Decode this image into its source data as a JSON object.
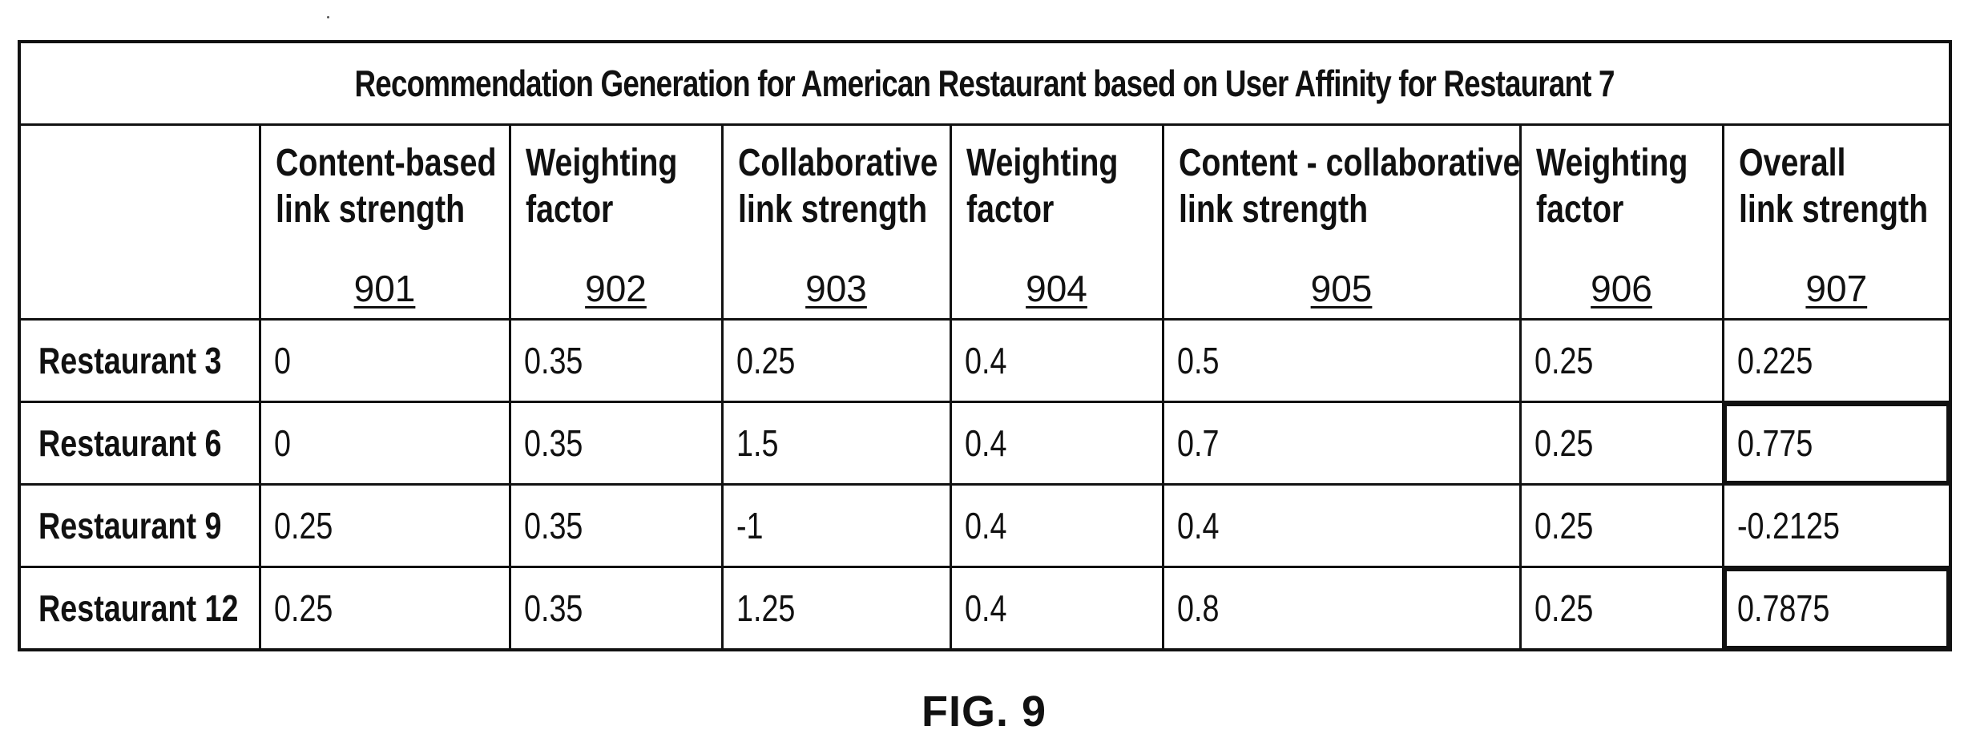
{
  "table": {
    "title": "Recommendation Generation for American Restaurant based on User Affinity for Restaurant 7",
    "columns": [
      {
        "label": "Content-based\nlink strength",
        "ref": "901"
      },
      {
        "label": "Weighting\nfactor",
        "ref": "902"
      },
      {
        "label": "Collaborative\nlink strength",
        "ref": "903"
      },
      {
        "label": "Weighting\nfactor",
        "ref": "904"
      },
      {
        "label": "Content - collaborative\nlink strength",
        "ref": "905"
      },
      {
        "label": "Weighting\nfactor",
        "ref": "906"
      },
      {
        "label": "Overall\nlink strength",
        "ref": "907"
      }
    ],
    "rows": [
      {
        "label": "Restaurant 3",
        "values": [
          "0",
          "0.35",
          "0.25",
          "0.4",
          "0.5",
          "0.25",
          "0.225"
        ],
        "highlight_overall": false
      },
      {
        "label": "Restaurant 6",
        "values": [
          "0",
          "0.35",
          "1.5",
          "0.4",
          "0.7",
          "0.25",
          "0.775"
        ],
        "highlight_overall": true
      },
      {
        "label": "Restaurant 9",
        "values": [
          "0.25",
          "0.35",
          "-1",
          "0.4",
          "0.4",
          "0.25",
          "-0.2125"
        ],
        "highlight_overall": false
      },
      {
        "label": "Restaurant 12",
        "values": [
          "0.25",
          "0.35",
          "1.25",
          "0.4",
          "0.8",
          "0.25",
          "0.7875"
        ],
        "highlight_overall": true
      }
    ]
  },
  "caption": "FIG. 9"
}
